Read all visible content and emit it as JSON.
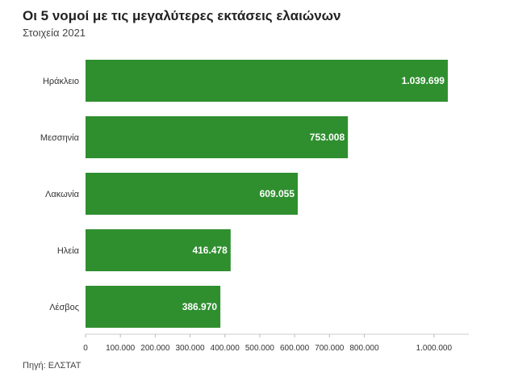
{
  "chart_data": {
    "type": "bar",
    "orientation": "horizontal",
    "title": "Οι 5 νομοί με τις μεγαλύτερες εκτάσεις ελαιώνων",
    "subtitle": "Στοιχεία 2021",
    "categories": [
      "Ηράκλειο",
      "Μεσσηνία",
      "Λακωνία",
      "Ηλεία",
      "Λέσβος"
    ],
    "values": [
      1039699,
      753008,
      609055,
      416478,
      386970
    ],
    "value_labels": [
      "1.039.699",
      "753.008",
      "609.055",
      "416.478",
      "386.970"
    ],
    "xlim": [
      0,
      1100000
    ],
    "ticks": [
      {
        "value": 0,
        "label": "0"
      },
      {
        "value": 100000,
        "label": "100.000"
      },
      {
        "value": 200000,
        "label": "200.000"
      },
      {
        "value": 300000,
        "label": "300.000"
      },
      {
        "value": 400000,
        "label": "400.000"
      },
      {
        "value": 500000,
        "label": "500.000"
      },
      {
        "value": 600000,
        "label": "600.000"
      },
      {
        "value": 700000,
        "label": "700.000"
      },
      {
        "value": 800000,
        "label": "800.000"
      },
      {
        "value": 1000000,
        "label": "1.000.000"
      }
    ],
    "grid": false,
    "legend": "none",
    "bar_color": "#2f8f2f",
    "source": "Πηγή: ΕΛΣΤΑΤ"
  }
}
